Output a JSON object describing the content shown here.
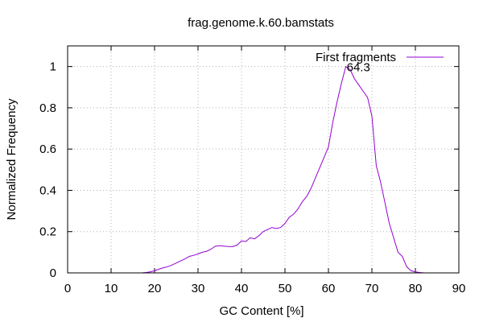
{
  "chart_data": {
    "type": "line",
    "title": "frag.genome.k.60.bamstats",
    "xlabel": "GC Content [%]",
    "ylabel": "Normalized Frequency",
    "xlim": [
      0,
      90
    ],
    "ylim": [
      0,
      1.1
    ],
    "xticks": [
      "0",
      "10",
      "20",
      "30",
      "40",
      "50",
      "60",
      "70",
      "80",
      "90"
    ],
    "yticks": [
      "0",
      "0.2",
      "0.4",
      "0.6",
      "0.8",
      "1"
    ],
    "grid": true,
    "legend_position": "top-right",
    "annotations": [
      {
        "text": "64.3",
        "x": 64.3,
        "y": 1.0
      }
    ],
    "series": [
      {
        "name": "First fragments",
        "color": "#9400d3",
        "x": [
          17,
          18,
          19,
          20,
          21,
          22,
          23,
          24,
          25,
          26,
          27,
          28,
          29,
          30,
          31,
          32,
          33,
          34,
          35,
          36,
          37,
          38,
          39,
          40,
          41,
          42,
          43,
          44,
          45,
          46,
          47,
          48,
          49,
          50,
          51,
          52,
          53,
          54,
          55,
          56,
          57,
          58,
          59,
          60,
          61,
          62,
          63,
          64,
          64.3,
          65,
          66,
          67,
          68,
          69,
          70,
          71,
          72,
          73,
          74,
          75,
          76,
          77,
          78,
          79,
          80,
          81,
          82,
          83
        ],
        "y": [
          0.0,
          0.002,
          0.005,
          0.01,
          0.018,
          0.025,
          0.03,
          0.038,
          0.048,
          0.058,
          0.068,
          0.08,
          0.085,
          0.092,
          0.1,
          0.105,
          0.115,
          0.13,
          0.132,
          0.13,
          0.128,
          0.127,
          0.135,
          0.155,
          0.152,
          0.17,
          0.165,
          0.18,
          0.2,
          0.21,
          0.22,
          0.215,
          0.22,
          0.24,
          0.27,
          0.285,
          0.31,
          0.345,
          0.37,
          0.41,
          0.46,
          0.51,
          0.56,
          0.61,
          0.73,
          0.83,
          0.92,
          1.0,
          0.995,
          0.985,
          0.94,
          0.91,
          0.88,
          0.85,
          0.76,
          0.52,
          0.44,
          0.34,
          0.24,
          0.17,
          0.1,
          0.08,
          0.03,
          0.01,
          0.005,
          0.002,
          0.0,
          0.0
        ]
      }
    ]
  }
}
